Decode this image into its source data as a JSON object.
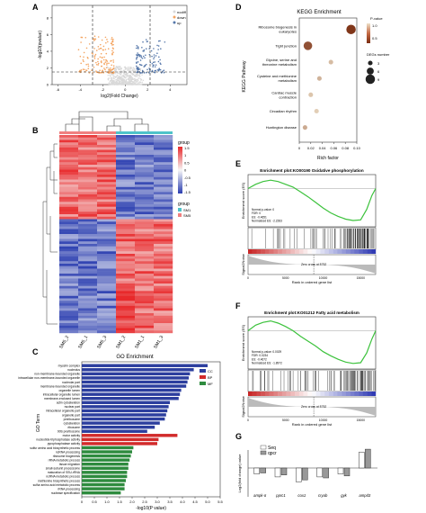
{
  "panels": {
    "A": "A",
    "B": "B",
    "C": "C",
    "D": "D",
    "E": "E",
    "F": "F",
    "G": "G"
  },
  "volcano": {
    "ylabel": "-log10(pvalue)",
    "xlabel": "log2(Fold Change)",
    "xticks": [
      "-6",
      "-4",
      "-2",
      "0",
      "2",
      "4"
    ],
    "yticks": [
      "0",
      "2",
      "4",
      "6",
      "8"
    ],
    "legend": [
      {
        "label": "nodiff",
        "color": "#d9d9d9"
      },
      {
        "label": "down",
        "color": "#f4a460"
      },
      {
        "label": "up",
        "color": "#5577aa"
      }
    ]
  },
  "heatmap": {
    "columns": [
      "SM5_2",
      "SM5_1",
      "SM5_3",
      "SM1_2",
      "SM1_1",
      "SM1_3"
    ],
    "scale_ticks": [
      "1.5",
      "1",
      "0.5",
      "0",
      "-0.5",
      "-1",
      "-1.5"
    ],
    "legend_title": "group",
    "groups": [
      {
        "label": "SM1",
        "color": "#4fc3c9"
      },
      {
        "label": "SM5",
        "color": "#f08080"
      }
    ]
  },
  "go": {
    "title": "GO Enrichment",
    "ylabel": "GO Term",
    "xlabel": "-log10(P value)",
    "xticks": [
      "0",
      "0.5",
      "1.0",
      "1.5",
      "2.0",
      "2.5",
      "3.0",
      "3.5",
      "4.0",
      "4.5",
      "5.0",
      "5.5"
    ],
    "legend": [
      {
        "label": "CC",
        "color": "#2c3e9e"
      },
      {
        "label": "BP",
        "color": "#d22b2b"
      },
      {
        "label": "MF",
        "color": "#2e8b3e"
      }
    ]
  },
  "kegg": {
    "title": "KEGG Enrichment",
    "ylabel": "KEGG Pathway",
    "xlabel": "Rich factor",
    "xticks": [
      "0",
      "0.02",
      "0.04",
      "0.06",
      "0.08",
      "0.10"
    ],
    "pvalue_title": "P-value",
    "pvalue_ticks": [
      "1.0",
      "0.5"
    ],
    "size_title": "DEGs number",
    "size_ticks": [
      "3",
      "6",
      "9"
    ]
  },
  "gsea": [
    {
      "title": "Enrichment plot:KO00190 Oxidative phosphorylation",
      "es_label": "Enrichment score (ES)",
      "ranked_label": "Signal2Noise",
      "xlabel": "Rank in ordered gene list",
      "zero_cross": "Zero cross at 8752",
      "stats": [
        "Normal p-value: 0",
        "FDR: 0",
        "ES: -0.4651",
        "Normalized ES: -2.2283"
      ],
      "xticks": [
        "0",
        "5000",
        "10000",
        "15000"
      ]
    },
    {
      "title": "Enrichment plot:KO01212 Fatty acid metabolism",
      "es_label": "Enrichment score (ES)",
      "ranked_label": "Signal2Noise",
      "xlabel": "Rank in ordered gene list",
      "zero_cross": "Zero cross at 8752",
      "stats": [
        "Normal p-value: 0.0029",
        "FDR: 0.0234",
        "ES: -0.4672",
        "Normalized ES: -1.8972"
      ],
      "xticks": [
        "0",
        "5000",
        "10000",
        "15000"
      ]
    }
  ],
  "qpcr": {
    "ylabel": "Log2(fold change) value",
    "legend": [
      {
        "label": "Seq",
        "color": "#ffffff"
      },
      {
        "label": "qpcr",
        "color": "#999999"
      }
    ]
  },
  "chart_data": [
    {
      "type": "scatter",
      "panel": "A",
      "xlabel": "log2(Fold Change)",
      "ylabel": "-log10(pvalue)",
      "xlim": [
        -6.5,
        5.5
      ],
      "ylim": [
        0,
        9.5
      ],
      "thresholds": {
        "x": [
          -1,
          1
        ],
        "y": 1.3
      },
      "series": [
        {
          "name": "nodiff"
        },
        {
          "name": "down"
        },
        {
          "name": "up"
        }
      ]
    },
    {
      "type": "heatmap",
      "panel": "B",
      "columns": [
        "SM5_2",
        "SM5_1",
        "SM5_3",
        "SM1_2",
        "SM1_1",
        "SM1_3"
      ],
      "color_range": [
        -1.5,
        1.5
      ]
    },
    {
      "type": "bar",
      "panel": "C",
      "title": "GO Enrichment",
      "xlabel": "-log10(P value)",
      "ylabel": "GO Term",
      "xlim": [
        0,
        5.5
      ],
      "categories": [
        "mycelin complex",
        "nucleolus",
        "non-membrane-bounded organelle",
        "intracellular non-membrane-bounded organelle",
        "nucleolar part",
        "membrane-bounded organelle",
        "organelle lumen",
        "intracellular organelle lumen",
        "membrane-enclosed lumen",
        "actin cytoskeleton",
        "nuclear part",
        "intracellular organelle part",
        "organelle part",
        "preribosome",
        "cytoskeleton",
        "ribosome",
        "90S preribosome",
        "motor activity",
        "nucleotide-triphosphatase activity",
        "pyrophosphatase activity",
        "sulfur amino acid biosynthetic process",
        "ncRNA processing",
        "ribosome biogenesis",
        "rRNA metabolic process",
        "tissue migration",
        "small-subunit processome",
        "maturation of SSU-rRNA",
        "ncRNA metabolic process",
        "methionine biosynthetic process",
        "sulfur amino acid metabolic process",
        "rRNA processing",
        "nuclease specification"
      ],
      "values": [
        5.0,
        4.45,
        4.3,
        4.25,
        4.2,
        4.15,
        3.95,
        3.9,
        3.85,
        3.5,
        3.45,
        3.4,
        3.35,
        3.3,
        3.1,
        2.9,
        2.6,
        3.8,
        3.05,
        3.0,
        2.05,
        2.0,
        1.95,
        1.9,
        1.85,
        1.85,
        1.8,
        1.8,
        1.75,
        1.7,
        1.7,
        1.55
      ],
      "groups": [
        "CC",
        "CC",
        "CC",
        "CC",
        "CC",
        "CC",
        "CC",
        "CC",
        "CC",
        "CC",
        "CC",
        "CC",
        "CC",
        "CC",
        "CC",
        "CC",
        "CC",
        "BP",
        "BP",
        "BP",
        "MF",
        "MF",
        "MF",
        "MF",
        "MF",
        "MF",
        "MF",
        "MF",
        "MF",
        "MF",
        "MF",
        "MF"
      ]
    },
    {
      "type": "scatter",
      "panel": "D",
      "title": "KEGG Enrichment",
      "xlabel": "Rich factor",
      "ylabel": "KEGG Pathway",
      "xlim": [
        0,
        0.1
      ],
      "categories": [
        "Ribosome biogenesis in eukaryotes",
        "Tight junction",
        "Glycine, serine and threonine metabolism",
        "Cysteine and methionine metabolism",
        "Cardiac muscle contraction",
        "Circadian rhythm",
        "Huntington disease"
      ],
      "x": [
        0.09,
        0.015,
        0.055,
        0.035,
        0.02,
        0.03,
        0.01
      ],
      "size": [
        9,
        8,
        3,
        3,
        3,
        3,
        3
      ],
      "pvalue": [
        0.05,
        0.2,
        0.8,
        0.75,
        0.85,
        0.9,
        0.7
      ]
    },
    {
      "type": "line",
      "panel": "E",
      "title": "Enrichment plot:KO00190 Oxidative phosphorylation",
      "ylabel": "Enrichment score (ES)",
      "xlabel": "Rank in ordered gene list",
      "xlim": [
        0,
        17000
      ],
      "x": [
        0,
        1000,
        2000,
        3000,
        4000,
        5000,
        6000,
        7000,
        8000,
        9000,
        10000,
        11000,
        12000,
        13000,
        14000,
        15000,
        15800,
        16500,
        17000
      ],
      "y": [
        0,
        0.06,
        0.1,
        0.12,
        0.1,
        0.06,
        0.02,
        -0.05,
        -0.12,
        -0.2,
        -0.28,
        -0.35,
        -0.4,
        -0.44,
        -0.46,
        -0.45,
        -0.3,
        -0.1,
        0
      ]
    },
    {
      "type": "line",
      "panel": "F",
      "title": "Enrichment plot:KO01212 Fatty acid metabolism",
      "ylabel": "Enrichment score (ES)",
      "xlabel": "Rank in ordered gene list",
      "xlim": [
        0,
        17000
      ],
      "x": [
        0,
        1000,
        2000,
        3000,
        4000,
        5000,
        6000,
        7000,
        8000,
        9000,
        10000,
        11000,
        12000,
        13000,
        14000,
        15000,
        15800,
        16500,
        17000
      ],
      "y": [
        0,
        0.08,
        0.12,
        0.14,
        0.11,
        0.06,
        0.0,
        -0.08,
        -0.15,
        -0.22,
        -0.3,
        -0.36,
        -0.41,
        -0.45,
        -0.47,
        -0.46,
        -0.32,
        -0.12,
        0
      ]
    },
    {
      "type": "bar",
      "panel": "G",
      "ylabel": "Log2(fold change) value",
      "categories": [
        "ampk-α",
        "pprc1",
        "cox1",
        "cryab",
        "gyk",
        "ampd3"
      ],
      "series": [
        {
          "name": "Seq",
          "values": [
            -0.6,
            -0.9,
            -1.4,
            -0.9,
            -0.6,
            1.6
          ]
        },
        {
          "name": "qpcr",
          "values": [
            -0.5,
            -0.7,
            -1.2,
            -1.0,
            -0.8,
            1.9
          ]
        }
      ],
      "ylim": [
        -2,
        2.5
      ]
    }
  ]
}
